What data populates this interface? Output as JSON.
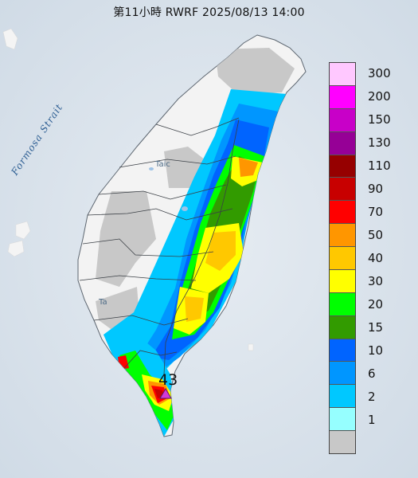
{
  "header": {
    "title": "第11小時  RWRF 2025/08/13 14:00"
  },
  "map": {
    "strait_label": "Formosa Strait",
    "place_labels": [
      {
        "id": "taichung",
        "text": "Taic"
      },
      {
        "id": "tainan",
        "text": "Ta"
      }
    ],
    "peak_marker": {
      "value": "43",
      "symbol": "triangle",
      "color": "#d23ad8"
    }
  },
  "legend": {
    "items": [
      {
        "label": "300",
        "color": "#ffc8ff"
      },
      {
        "label": "200",
        "color": "#ff00ff"
      },
      {
        "label": "150",
        "color": "#c800c8"
      },
      {
        "label": "130",
        "color": "#960096"
      },
      {
        "label": "110",
        "color": "#960000"
      },
      {
        "label": "90",
        "color": "#c80000"
      },
      {
        "label": "70",
        "color": "#ff0000"
      },
      {
        "label": "50",
        "color": "#ff9600"
      },
      {
        "label": "40",
        "color": "#ffc800"
      },
      {
        "label": "30",
        "color": "#ffff00"
      },
      {
        "label": "20",
        "color": "#00ff00"
      },
      {
        "label": "15",
        "color": "#329b00"
      },
      {
        "label": "10",
        "color": "#0064ff"
      },
      {
        "label": "6",
        "color": "#0096ff"
      },
      {
        "label": "2",
        "color": "#00c8ff"
      },
      {
        "label": "1",
        "color": "#96ffff"
      },
      {
        "label": "",
        "color": "#c8c8c8"
      }
    ],
    "no_label_fill": "#c8c8c8"
  },
  "colors": {
    "sea": "#dfe6ee",
    "land": "#f2f2f2",
    "no_rain": "#c8c8c8"
  }
}
